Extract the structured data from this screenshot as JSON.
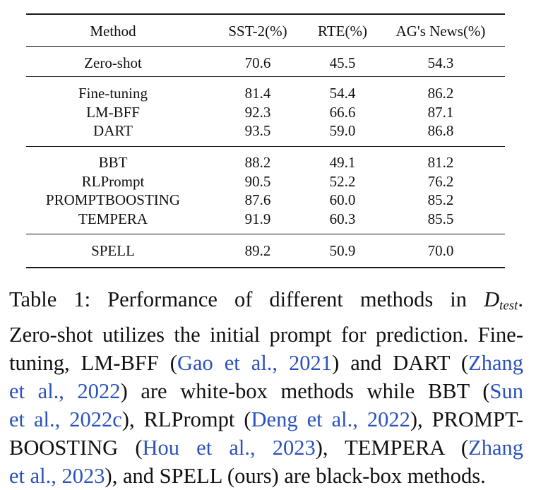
{
  "table": {
    "headers": [
      "Method",
      "SST-2(%)",
      "RTE(%)",
      "AG's News(%)"
    ],
    "groups": [
      [
        {
          "method": "Zero-shot",
          "sst2": "70.6",
          "rte": "45.5",
          "agnews": "54.3"
        }
      ],
      [
        {
          "method": "Fine-tuning",
          "sst2": "81.4",
          "rte": "54.4",
          "agnews": "86.2"
        },
        {
          "method": "LM-BFF",
          "sst2": "92.3",
          "rte": "66.6",
          "agnews": "87.1"
        },
        {
          "method": "DART",
          "sst2": "93.5",
          "rte": "59.0",
          "agnews": "86.8"
        }
      ],
      [
        {
          "method": "BBT",
          "sst2": "88.2",
          "rte": "49.1",
          "agnews": "81.2"
        },
        {
          "method": "RLPrompt",
          "sst2": "90.5",
          "rte": "52.2",
          "agnews": "76.2"
        },
        {
          "method": "PROMPTBOOSTING",
          "sst2": "87.6",
          "rte": "60.0",
          "agnews": "85.2"
        },
        {
          "method": "TEMPERA",
          "sst2": "91.9",
          "rte": "60.3",
          "agnews": "85.5"
        }
      ],
      [
        {
          "method": "SPELL",
          "sst2": "89.2",
          "rte": "50.9",
          "agnews": "70.0"
        }
      ]
    ]
  },
  "caption": {
    "lines": [
      [
        {
          "t": "Table 1: Performance of different methods in "
        },
        {
          "math": "D",
          "sub": "test"
        },
        {
          "t": "."
        }
      ],
      [
        {
          "t": "Zero-shot utilizes the initial prompt for prediction. Fine-"
        }
      ],
      [
        {
          "t": "tuning, LM-BFF ("
        },
        {
          "cite": "Gao et al., 2021"
        },
        {
          "t": ") and DART ("
        },
        {
          "cite": "Zhang"
        }
      ],
      [
        {
          "cite": "et al., 2022"
        },
        {
          "t": ") are white-box methods while BBT ("
        },
        {
          "cite": "Sun"
        }
      ],
      [
        {
          "cite": "et al., 2022c"
        },
        {
          "t": "), RLPrompt ("
        },
        {
          "cite": "Deng et al., 2022"
        },
        {
          "t": "), PROMPT-"
        }
      ],
      [
        {
          "t": "BOOSTING ("
        },
        {
          "cite": "Hou et al., 2023"
        },
        {
          "t": "), TEMPERA ("
        },
        {
          "cite": "Zhang"
        }
      ],
      [
        {
          "cite": "et al., 2023"
        },
        {
          "t": "), and SPELL (ours) are black-box methods."
        }
      ]
    ]
  }
}
